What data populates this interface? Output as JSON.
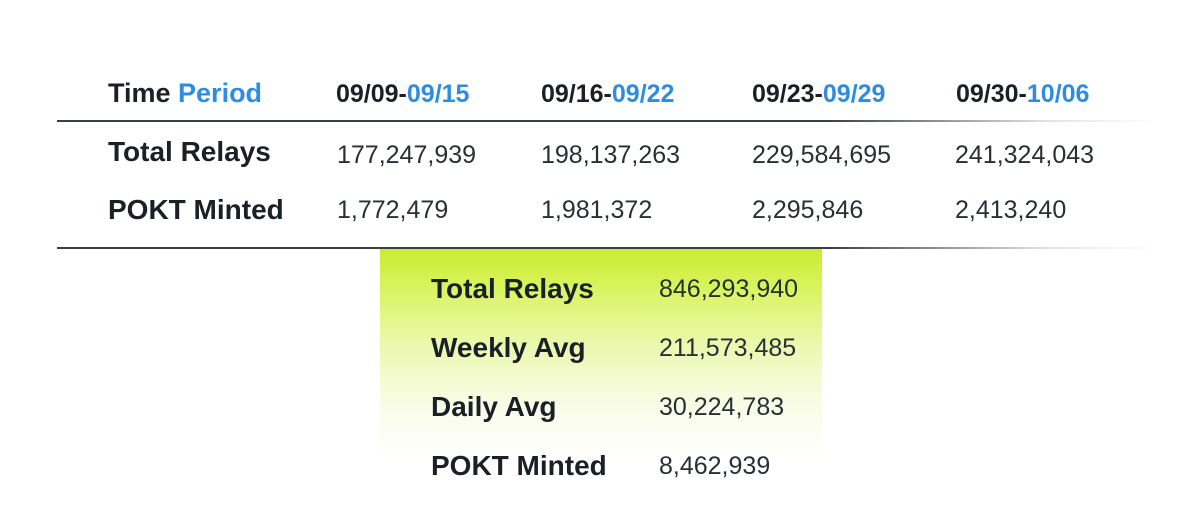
{
  "header": {
    "label_part1": "Time ",
    "label_part2": "Period",
    "periods": [
      {
        "start": "09/09-",
        "end": "09/15"
      },
      {
        "start": "09/16-",
        "end": "09/22"
      },
      {
        "start": "09/23-",
        "end": "09/29"
      },
      {
        "start": "09/30-",
        "end": "10/06"
      }
    ]
  },
  "rows": [
    {
      "label": "Total Relays",
      "values": [
        "177,247,939",
        "198,137,263",
        "229,584,695",
        "241,324,043"
      ]
    },
    {
      "label": "POKT Minted",
      "values": [
        "1,772,479",
        "1,981,372",
        "2,295,846",
        "2,413,240"
      ]
    }
  ],
  "summary": [
    {
      "label": "Total Relays",
      "value": "846,293,940"
    },
    {
      "label": "Weekly Avg",
      "value": "211,573,485"
    },
    {
      "label": "Daily Avg",
      "value": "30,224,783"
    },
    {
      "label": "POKT Minted",
      "value": "8,462,939"
    }
  ],
  "colors": {
    "accent_blue": "#2e8de0",
    "highlight_green": "#c9ec2d",
    "text_dark": "#1b2027"
  }
}
